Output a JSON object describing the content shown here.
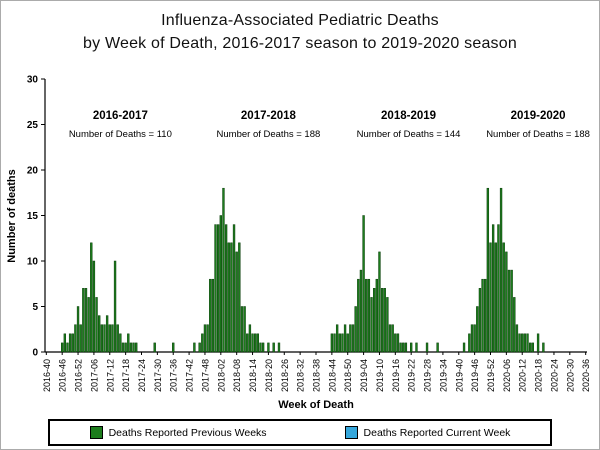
{
  "title": {
    "line1": "Influenza-Associated Pediatric Deaths",
    "line2": "by Week of Death, 2016-2017 season to 2019-2020 season"
  },
  "chart_data": {
    "type": "bar",
    "title": "Influenza-Associated Pediatric Deaths by Week of Death, 2016-2017 season to 2019-2020 season",
    "xlabel": "Week of Death",
    "ylabel": "Number of deaths",
    "ylim": [
      0,
      30
    ],
    "yticks": [
      0,
      5,
      10,
      15,
      20,
      25,
      30
    ],
    "tick_every": 6,
    "x_tick_labels": [
      "2016-40",
      "2016-46",
      "2016-52",
      "2017-06",
      "2017-12",
      "2017-18",
      "2017-24",
      "2017-30",
      "2017-36",
      "2017-42",
      "2017-48",
      "2018-02",
      "2018-08",
      "2018-14",
      "2018-20",
      "2018-26",
      "2018-32",
      "2018-38",
      "2018-44",
      "2018-50",
      "2019-04",
      "2019-10",
      "2019-16",
      "2019-22",
      "2019-28",
      "2019-34",
      "2019-40",
      "2019-46",
      "2019-52",
      "2020-06",
      "2020-12",
      "2020-18",
      "2020-24",
      "2020-30",
      "2020-36"
    ],
    "bar_color": "#1C7C1C",
    "bar_edge_color": "#0A3D0A",
    "current_week_color": "#35A7DC",
    "values": [
      0,
      0,
      0,
      0,
      0,
      0,
      1,
      2,
      1,
      2,
      2,
      3,
      5,
      3,
      7,
      7,
      6,
      12,
      10,
      6,
      4,
      3,
      3,
      4,
      3,
      3,
      10,
      3,
      2,
      1,
      1,
      2,
      1,
      1,
      1,
      0,
      0,
      0,
      0,
      0,
      0,
      1,
      0,
      0,
      0,
      0,
      0,
      0,
      1,
      0,
      0,
      0,
      0,
      0,
      0,
      0,
      1,
      0,
      1,
      2,
      3,
      3,
      8,
      8,
      14,
      14,
      15,
      18,
      14,
      12,
      12,
      14,
      11,
      12,
      5,
      5,
      2,
      3,
      2,
      2,
      2,
      1,
      1,
      0,
      1,
      0,
      1,
      0,
      1,
      0,
      0,
      0,
      0,
      0,
      0,
      0,
      0,
      0,
      0,
      0,
      0,
      0,
      0,
      0,
      0,
      0,
      0,
      0,
      2,
      2,
      3,
      2,
      2,
      3,
      2,
      3,
      3,
      5,
      8,
      9,
      15,
      8,
      8,
      6,
      7,
      8,
      11,
      7,
      7,
      6,
      3,
      3,
      2,
      2,
      1,
      1,
      1,
      0,
      1,
      0,
      1,
      0,
      0,
      0,
      1,
      0,
      0,
      0,
      1,
      0,
      0,
      0,
      0,
      0,
      0,
      0,
      0,
      0,
      1,
      0,
      2,
      3,
      3,
      5,
      7,
      8,
      8,
      18,
      12,
      14,
      12,
      14,
      18,
      12,
      11,
      9,
      9,
      6,
      3,
      2,
      2,
      2,
      2,
      1,
      1,
      0,
      2,
      0,
      1,
      0,
      0,
      0,
      0,
      0,
      0,
      0,
      0,
      0,
      0,
      0,
      0,
      0,
      0,
      0,
      0
    ],
    "seasons": [
      {
        "label": "2016-2017",
        "note": "Number of Deaths = 110",
        "total_deaths": 110,
        "center_week": 28
      },
      {
        "label": "2017-2018",
        "note": "Number of Deaths = 188",
        "total_deaths": 188,
        "center_week": 84
      },
      {
        "label": "2018-2019",
        "note": "Number of Deaths = 144",
        "total_deaths": 144,
        "center_week": 137
      },
      {
        "label": "2019-2020",
        "note": "Number of Deaths = 188",
        "total_deaths": 188,
        "center_week": 186
      }
    ],
    "legend": [
      {
        "label": "Deaths Reported Previous Weeks",
        "color": "#1C7C1C"
      },
      {
        "label": "Deaths Reported Current Week",
        "color": "#35A7DC"
      }
    ]
  }
}
